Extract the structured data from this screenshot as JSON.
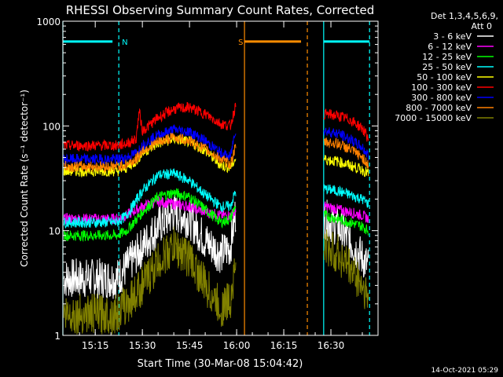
{
  "chart_data": {
    "type": "line",
    "title": "RHESSI Observing Summary Count Rates, Corrected",
    "xlabel": "Start Time (30-Mar-08 15:04:42)",
    "ylabel": "Corrected Count Rate (s⁻¹ detector⁻¹)",
    "footer": "14-Oct-2021 05:29",
    "legend_header_1": "Det 1,3,4,5,6,9,",
    "legend_header_2": "Att 0",
    "yscale": "log",
    "ylim": [
      1,
      1000
    ],
    "xlim_minutes": [
      904.7,
      1005
    ],
    "xticks": [
      {
        "t": 915,
        "label": "15:15"
      },
      {
        "t": 930,
        "label": "15:30"
      },
      {
        "t": 945,
        "label": "15:45"
      },
      {
        "t": 960,
        "label": "16:00"
      },
      {
        "t": 975,
        "label": "16:15"
      },
      {
        "t": 990,
        "label": "16:30"
      }
    ],
    "yticks": [
      {
        "v": 1,
        "label": "1"
      },
      {
        "v": 10,
        "label": "10"
      },
      {
        "v": 100,
        "label": "100"
      },
      {
        "v": 1000,
        "label": "1000"
      }
    ],
    "flags": [
      {
        "label": "N",
        "color": "#00ffff",
        "start": 904.7,
        "end": 922.5
      },
      {
        "label": "S",
        "color": "#ff8c00",
        "start": 962.5,
        "end": 982.5
      },
      {
        "label": "",
        "color": "#00ffff",
        "start": 987.7,
        "end": 1002.3
      }
    ],
    "flag_level": 640,
    "gaps": [
      [
        959.8,
        987.7
      ]
    ],
    "series": [
      {
        "name": "3 - 6 keV",
        "color": "#ffffff",
        "x": [
          905,
          912,
          918,
          922,
          925,
          930,
          935,
          940,
          945,
          950,
          955,
          958,
          959.5,
          988,
          992,
          996,
          1000,
          1002
        ],
        "y": [
          3.5,
          3.5,
          3.5,
          3.5,
          4.5,
          7,
          11,
          15,
          13,
          8,
          6,
          7,
          14,
          13,
          11,
          8,
          5.5,
          4.5
        ]
      },
      {
        "name": "6 - 12 keV",
        "color": "#ff00ff",
        "x": [
          905,
          912,
          918,
          922,
          925,
          930,
          935,
          940,
          945,
          950,
          955,
          958,
          959.5,
          988,
          992,
          996,
          1000,
          1002
        ],
        "y": [
          13,
          13,
          13,
          13,
          14,
          17,
          19,
          18,
          17,
          15,
          14,
          14,
          15,
          17,
          16,
          15,
          14,
          13
        ]
      },
      {
        "name": "12 - 25 keV",
        "color": "#00ff00",
        "x": [
          905,
          912,
          918,
          922,
          925,
          930,
          935,
          940,
          945,
          950,
          955,
          958,
          959.5,
          988,
          992,
          996,
          1000,
          1002
        ],
        "y": [
          9,
          9,
          9,
          9,
          10,
          15,
          21,
          23,
          21,
          16,
          12,
          13,
          17,
          14,
          13,
          12,
          11,
          10
        ]
      },
      {
        "name": "25 - 50 keV",
        "color": "#00ffff",
        "x": [
          905,
          912,
          918,
          922,
          925,
          930,
          935,
          940,
          945,
          950,
          955,
          958,
          959.5,
          988,
          992,
          996,
          1000,
          1002
        ],
        "y": [
          12,
          12,
          12,
          12,
          14,
          24,
          34,
          35,
          30,
          22,
          17,
          17,
          23,
          25,
          24,
          22,
          20,
          18
        ]
      },
      {
        "name": "50 - 100 keV",
        "color": "#ffff00",
        "x": [
          905,
          912,
          918,
          922,
          925,
          928,
          930,
          935,
          940,
          945,
          950,
          955,
          958,
          959.5,
          988,
          992,
          996,
          1000,
          1002
        ],
        "y": [
          37,
          37,
          37,
          37,
          40,
          46,
          55,
          68,
          75,
          70,
          58,
          42,
          40,
          48,
          48,
          46,
          42,
          38,
          35
        ]
      },
      {
        "name": "100 - 300 keV",
        "color": "#ff0000",
        "x": [
          905,
          912,
          918,
          922,
          925,
          928,
          929,
          930,
          932,
          935,
          940,
          945,
          950,
          955,
          958,
          959.5,
          988,
          992,
          996,
          1000,
          1002
        ],
        "y": [
          65,
          65,
          65,
          65,
          68,
          75,
          140,
          90,
          100,
          120,
          145,
          150,
          130,
          105,
          100,
          150,
          130,
          125,
          115,
          95,
          75
        ]
      },
      {
        "name": "300 - 800 keV",
        "color": "#0000ff",
        "x": [
          905,
          912,
          918,
          922,
          925,
          928,
          930,
          935,
          940,
          945,
          950,
          955,
          958,
          959.5,
          988,
          992,
          996,
          1000,
          1002
        ],
        "y": [
          48,
          48,
          48,
          48,
          50,
          55,
          65,
          82,
          92,
          88,
          72,
          55,
          50,
          90,
          90,
          85,
          75,
          62,
          52
        ]
      },
      {
        "name": "800 - 7000 keV",
        "color": "#ff8000",
        "x": [
          905,
          912,
          918,
          922,
          925,
          928,
          930,
          935,
          940,
          945,
          950,
          955,
          958,
          959.5,
          988,
          992,
          996,
          1000,
          1002
        ],
        "y": [
          41,
          41,
          41,
          41,
          43,
          48,
          58,
          70,
          78,
          72,
          60,
          48,
          43,
          60,
          70,
          68,
          60,
          50,
          42
        ]
      },
      {
        "name": "7000 - 15000 keV",
        "color": "#808000",
        "x": [
          905,
          912,
          918,
          922,
          925,
          930,
          935,
          940,
          945,
          950,
          955,
          958,
          959.5,
          988,
          992,
          996,
          1000,
          1002
        ],
        "y": [
          1.6,
          1.6,
          1.6,
          1.6,
          2,
          3,
          5,
          7,
          5.5,
          3,
          1.8,
          2.2,
          4.5,
          7,
          6,
          4.5,
          3,
          2.2
        ]
      }
    ]
  }
}
